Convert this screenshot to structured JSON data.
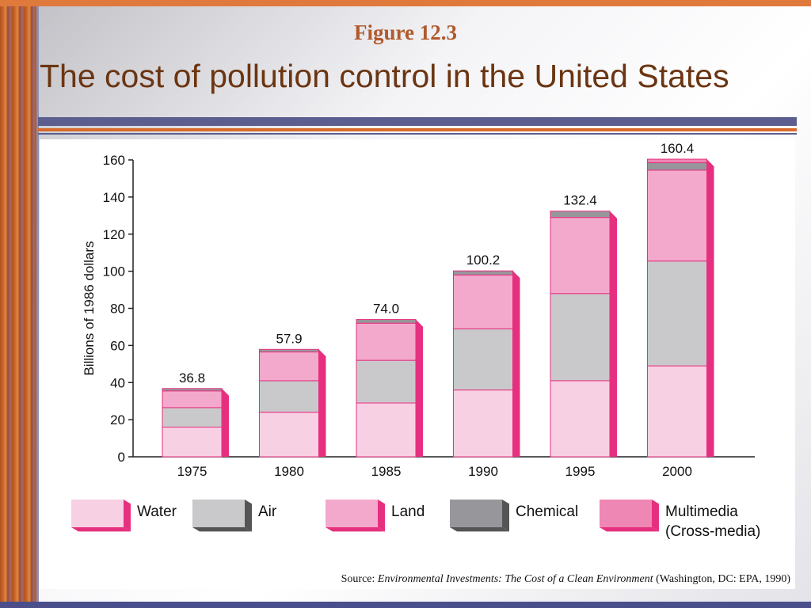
{
  "slide": {
    "figure_label": "Figure 12.3",
    "title": "The cost of pollution control in the United States"
  },
  "source": {
    "prefix": "Source: ",
    "title": "Environmental Investments: The Cost of a Clean Environment",
    "suffix": " (Washington, DC: EPA, 1990)"
  },
  "colors": {
    "water": "#f8d0e3",
    "air": "#c9c9cb",
    "land": "#f3a9cb",
    "chemical": "#97979b",
    "multimedia": "#ee87b4",
    "bar_side": "#e6307f",
    "axis": "#222222"
  },
  "chart_data": {
    "type": "bar",
    "stacked": true,
    "title": "",
    "xlabel": "",
    "ylabel": "Billions of 1986 dollars",
    "ylim": [
      0,
      160
    ],
    "yticks": [
      0,
      20,
      40,
      60,
      80,
      100,
      120,
      140,
      160
    ],
    "categories": [
      "1975",
      "1980",
      "1985",
      "1990",
      "1995",
      "2000"
    ],
    "totals": [
      36.8,
      57.9,
      74.0,
      100.2,
      132.4,
      160.4
    ],
    "total_labels": [
      "36.8",
      "57.9",
      "74.0",
      "100.2",
      "132.4",
      "160.4"
    ],
    "series": [
      {
        "name": "Water",
        "values": [
          16,
          24,
          29,
          36,
          41,
          49
        ]
      },
      {
        "name": "Air",
        "values": [
          10.5,
          17,
          23,
          33,
          47,
          56.5
        ]
      },
      {
        "name": "Land",
        "values": [
          9,
          15.5,
          20,
          29,
          41,
          49
        ]
      },
      {
        "name": "Chemical",
        "values": [
          1.3,
          1.4,
          2,
          2.2,
          3.4,
          4
        ]
      },
      {
        "name": "Multimedia\n(Cross-media)",
        "values": [
          0,
          0,
          0,
          0,
          0,
          1.9
        ]
      }
    ],
    "grid": false,
    "legend_position": "bottom"
  }
}
